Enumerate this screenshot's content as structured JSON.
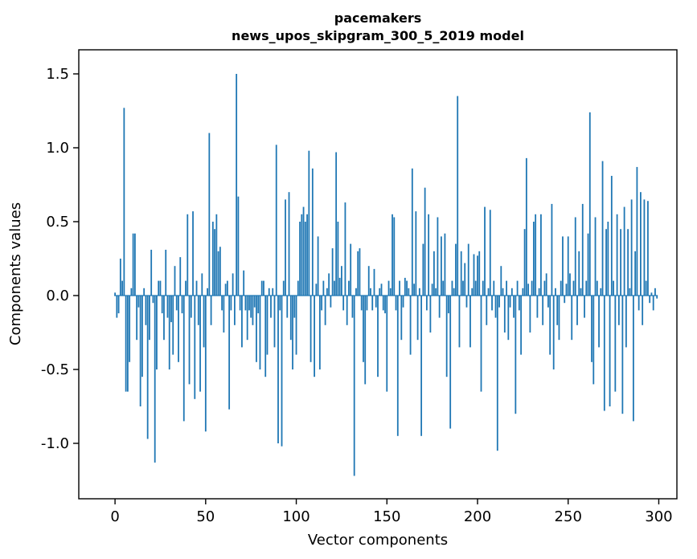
{
  "chart_data": {
    "type": "bar",
    "title_line1": "pacemakers",
    "title_line2": "news_upos_skipgram_300_5_2019 model",
    "xlabel": "Vector components",
    "ylabel": "Components values",
    "bar_color": "#1f77b4",
    "axis_color": "#000000",
    "xlim": [
      -20,
      310
    ],
    "ylim": [
      -1.375,
      1.663
    ],
    "xticks": [
      0,
      50,
      100,
      150,
      200,
      250,
      300
    ],
    "yticks": [
      -1.0,
      -0.5,
      0.0,
      0.5,
      1.0,
      1.5
    ],
    "bar_width_units": 0.8,
    "legend": "none",
    "grid": false,
    "values": [
      0.02,
      -0.15,
      -0.12,
      0.25,
      0.1,
      1.27,
      -0.65,
      -0.65,
      -0.45,
      0.05,
      0.42,
      0.42,
      -0.3,
      -0.08,
      -0.75,
      -0.55,
      0.05,
      -0.2,
      -0.97,
      -0.3,
      0.31,
      -0.05,
      -1.13,
      -0.5,
      0.1,
      0.1,
      -0.12,
      -0.3,
      0.31,
      -0.15,
      -0.5,
      -0.18,
      -0.4,
      0.2,
      -0.1,
      -0.45,
      0.26,
      -0.12,
      -0.85,
      0.1,
      0.55,
      -0.6,
      -0.15,
      0.57,
      -0.7,
      0.1,
      -0.2,
      -0.65,
      0.15,
      -0.35,
      -0.92,
      0.05,
      1.1,
      -0.2,
      0.5,
      0.45,
      0.55,
      0.3,
      0.33,
      -0.1,
      -0.25,
      0.08,
      0.1,
      -0.77,
      -0.1,
      0.15,
      -0.2,
      1.5,
      0.67,
      -0.1,
      -0.35,
      0.17,
      -0.1,
      -0.3,
      -0.1,
      -0.15,
      -0.2,
      -0.08,
      -0.45,
      -0.12,
      -0.5,
      0.1,
      0.1,
      -0.55,
      -0.4,
      0.05,
      -0.15,
      0.05,
      -0.35,
      1.02,
      -1.0,
      -0.1,
      -1.02,
      0.1,
      0.65,
      -0.15,
      0.7,
      -0.3,
      -0.5,
      -0.15,
      -0.4,
      0.1,
      0.5,
      0.55,
      0.6,
      0.5,
      0.55,
      0.98,
      -0.45,
      0.86,
      -0.55,
      0.08,
      0.4,
      -0.5,
      -0.1,
      0.1,
      -0.2,
      0.05,
      0.15,
      -0.08,
      0.32,
      0.1,
      0.97,
      0.5,
      0.12,
      0.2,
      -0.1,
      0.63,
      -0.2,
      0.1,
      0.35,
      -0.15,
      -1.22,
      0.05,
      0.3,
      0.32,
      -0.1,
      -0.45,
      -0.6,
      -0.1,
      0.2,
      0.05,
      -0.1,
      0.18,
      -0.08,
      -0.55,
      0.05,
      0.08,
      -0.1,
      -0.12,
      -0.65,
      0.1,
      0.05,
      0.55,
      0.53,
      -0.1,
      -0.95,
      0.1,
      -0.3,
      -0.08,
      0.12,
      0.1,
      0.05,
      -0.4,
      0.86,
      0.08,
      0.57,
      -0.3,
      0.05,
      -0.95,
      0.35,
      0.73,
      -0.1,
      0.55,
      -0.25,
      0.08,
      0.3,
      0.05,
      0.53,
      -0.15,
      0.4,
      0.1,
      0.42,
      -0.55,
      -0.12,
      -0.9,
      0.1,
      0.05,
      0.35,
      1.35,
      -0.35,
      0.3,
      0.1,
      0.22,
      -0.08,
      0.35,
      -0.35,
      0.05,
      0.28,
      0.1,
      0.27,
      0.3,
      -0.65,
      0.1,
      0.6,
      -0.2,
      0.05,
      0.58,
      -0.1,
      0.1,
      -0.15,
      -1.05,
      -0.08,
      0.2,
      0.05,
      -0.25,
      0.1,
      -0.3,
      -0.08,
      0.05,
      -0.15,
      -0.8,
      0.1,
      -0.1,
      -0.4,
      0.05,
      0.45,
      0.93,
      0.08,
      -0.25,
      0.1,
      0.5,
      0.55,
      -0.15,
      0.05,
      0.55,
      -0.2,
      0.1,
      0.15,
      -0.08,
      -0.4,
      0.62,
      -0.5,
      0.05,
      -0.2,
      -0.3,
      0.1,
      0.4,
      -0.05,
      0.08,
      0.4,
      0.15,
      -0.3,
      0.1,
      0.53,
      -0.2,
      0.3,
      0.05,
      0.62,
      -0.15,
      0.1,
      0.42,
      1.24,
      -0.45,
      -0.6,
      0.53,
      0.1,
      -0.35,
      0.05,
      0.91,
      -0.78,
      0.45,
      0.5,
      -0.75,
      0.81,
      0.1,
      -0.65,
      0.55,
      -0.2,
      0.45,
      -0.8,
      0.6,
      -0.35,
      0.45,
      0.05,
      0.65,
      -0.85,
      0.3,
      0.87,
      -0.1,
      0.7,
      -0.2,
      0.65,
      0.1,
      0.64,
      -0.05,
      0.02,
      -0.1,
      0.05,
      -0.02
    ]
  }
}
